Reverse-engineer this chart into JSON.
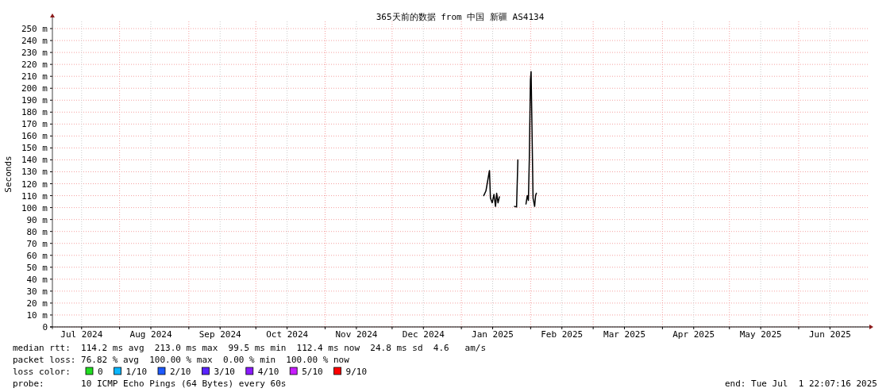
{
  "chart_data": {
    "type": "line",
    "title": "365天前的数据 from 中国 新疆 AS4134",
    "ylabel": "Seconds",
    "legend_title": "loss color:",
    "legend": "bottom",
    "grid": true,
    "marker": "none",
    "line_style": "solid",
    "xlim": [
      "2024-07-01T22:07",
      "2025-07-01T22:07"
    ],
    "xticks": [
      {
        "value": "2024-07-15",
        "label": "Jul 2024"
      },
      {
        "value": "2024-08-01",
        "label": null
      },
      {
        "value": "2024-08-15",
        "label": "Aug 2024"
      },
      {
        "value": "2024-09-01",
        "label": null
      },
      {
        "value": "2024-09-15",
        "label": "Sep 2024"
      },
      {
        "value": "2024-10-01",
        "label": null
      },
      {
        "value": "2024-10-15",
        "label": "Oct 2024"
      },
      {
        "value": "2024-11-01",
        "label": null
      },
      {
        "value": "2024-11-15",
        "label": "Nov 2024"
      },
      {
        "value": "2024-12-01",
        "label": null
      },
      {
        "value": "2024-12-15",
        "label": "Dec 2024"
      },
      {
        "value": "2025-01-01",
        "label": null
      },
      {
        "value": "2025-01-15",
        "label": "Jan 2025"
      },
      {
        "value": "2025-02-01",
        "label": null
      },
      {
        "value": "2025-02-15",
        "label": "Feb 2025"
      },
      {
        "value": "2025-03-01",
        "label": null
      },
      {
        "value": "2025-03-15",
        "label": "Mar 2025"
      },
      {
        "value": "2025-04-01",
        "label": null
      },
      {
        "value": "2025-04-15",
        "label": "Apr 2025"
      },
      {
        "value": "2025-05-01",
        "label": null
      },
      {
        "value": "2025-05-15",
        "label": "May 2025"
      },
      {
        "value": "2025-06-01",
        "label": null
      },
      {
        "value": "2025-06-15",
        "label": "Jun 2025"
      }
    ],
    "ylim": [
      0,
      256
    ],
    "yticks": [
      0,
      {
        "value": 10,
        "label": "10 m"
      },
      {
        "value": 20,
        "label": "20 m"
      },
      {
        "value": 30,
        "label": "30 m"
      },
      {
        "value": 40,
        "label": "40 m"
      },
      {
        "value": 50,
        "label": "50 m"
      },
      {
        "value": 60,
        "label": "60 m"
      },
      {
        "value": 70,
        "label": "70 m"
      },
      {
        "value": 80,
        "label": "80 m"
      },
      {
        "value": 90,
        "label": "90 m"
      },
      {
        "value": 100,
        "label": "100 m"
      },
      {
        "value": 110,
        "label": "110 m"
      },
      {
        "value": 120,
        "label": "120 m"
      },
      {
        "value": 130,
        "label": "130 m"
      },
      {
        "value": 140,
        "label": "140 m"
      },
      {
        "value": 150,
        "label": "150 m"
      },
      {
        "value": 160,
        "label": "160 m"
      },
      {
        "value": 170,
        "label": "170 m"
      },
      {
        "value": 180,
        "label": "180 m"
      },
      {
        "value": 190,
        "label": "190 m"
      },
      {
        "value": 200,
        "label": "200 m"
      },
      {
        "value": 210,
        "label": "210 m"
      },
      {
        "value": 220,
        "label": "220 m"
      },
      {
        "value": 230,
        "label": "230 m"
      },
      {
        "value": 240,
        "label": "240 m"
      },
      {
        "value": 250,
        "label": "250 m"
      }
    ],
    "series": [
      {
        "color": "#000000",
        "x": [
          "2025-01-11",
          "2025-01-12",
          "2025-01-13T07:00",
          "2025-01-13T14:00",
          "2025-01-14",
          "2025-01-14T19:00",
          "2025-01-15T14:00",
          "2025-01-16T07:00",
          "2025-01-16T19:00",
          "2025-01-17T10:00",
          "2025-01-18",
          "2025-01-21",
          "2025-01-24T19:00",
          "2025-01-25T17:00",
          "2025-01-26T07:00",
          "2025-01-28",
          "2025-01-29T22:00",
          "2025-01-30T12:00",
          "2025-01-31",
          "2025-01-31T10:00",
          "2025-01-31T22:00",
          "2025-02-01T05:00",
          "2025-02-01T14:00",
          "2025-02-02T02:00",
          "2025-02-02T19:00",
          "2025-02-03T05:00",
          "2025-02-03T14:00"
        ],
        "values": [
          110,
          114,
          128,
          131,
          108,
          104,
          111,
          101,
          112,
          104,
          109,
          null,
          101,
          100.6,
          140,
          null,
          103,
          110,
          106,
          141,
          207,
          214,
          170,
          108,
          101,
          110,
          112
        ]
      },
      {
        "name": "0",
        "color": "#22dd22"
      },
      {
        "name": "1/10",
        "color": "#0bb6ff"
      },
      {
        "name": "2/10",
        "color": "#1e5aff"
      },
      {
        "name": "3/10",
        "color": "#5a24ff"
      },
      {
        "name": "4/10",
        "color": "#8a1aff"
      },
      {
        "name": "5/10",
        "color": "#c81eff"
      },
      {
        "name": "9/10",
        "color": "#ff0000"
      }
    ],
    "annotations": [
      "median rtt:  114.2 ms avg  213.0 ms max  99.5 ms min  112.4 ms now  24.8 ms sd  4.6   am/s",
      "packet loss: 76.82 % avg  100.00 % max  0.00 % min  100.00 % now",
      "probe:       10 ICMP Echo Pings (64 Bytes) every 60s",
      "end: Tue Jul  1 22:07:16 2025"
    ]
  }
}
